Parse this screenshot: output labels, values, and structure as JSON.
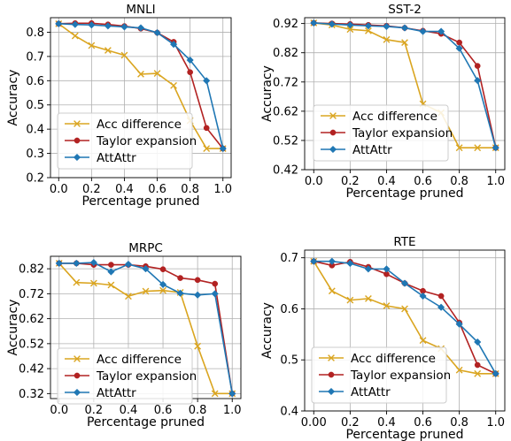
{
  "colors": {
    "acc_difference": "#DAA520",
    "taylor": "#B22222",
    "attattr": "#1F77B4"
  },
  "chart_data": [
    {
      "type": "line",
      "title": "MNLI",
      "xlabel": "Percentage pruned",
      "ylabel": "Accuracy",
      "xlim": [
        -0.05,
        1.05
      ],
      "ylim": [
        0.2,
        0.86
      ],
      "xticks": [
        "0.0",
        "0.2",
        "0.4",
        "0.6",
        "0.8",
        "1.0"
      ],
      "yticks": [
        "0.2",
        "0.3",
        "0.4",
        "0.5",
        "0.6",
        "0.7",
        "0.8"
      ],
      "grid": true,
      "legend": "lower-left",
      "x": [
        0.0,
        0.1,
        0.2,
        0.3,
        0.4,
        0.5,
        0.6,
        0.7,
        0.8,
        0.9,
        1.0
      ],
      "series": [
        {
          "name": "Acc difference",
          "marker": "x",
          "values": [
            0.835,
            0.785,
            0.745,
            0.725,
            0.705,
            0.627,
            0.63,
            0.58,
            0.435,
            0.32,
            0.32
          ]
        },
        {
          "name": "Taylor expansion",
          "marker": "o",
          "values": [
            0.835,
            0.837,
            0.837,
            0.832,
            0.825,
            0.815,
            0.798,
            0.76,
            0.635,
            0.405,
            0.32
          ]
        },
        {
          "name": "AttAttr",
          "marker": "D",
          "values": [
            0.835,
            0.832,
            0.83,
            0.826,
            0.822,
            0.818,
            0.798,
            0.75,
            0.685,
            0.6,
            0.32
          ]
        }
      ]
    },
    {
      "type": "line",
      "title": "SST-2",
      "xlabel": "Percentage pruned",
      "ylabel": "Accuracy",
      "xlim": [
        -0.05,
        1.05
      ],
      "ylim": [
        0.42,
        0.94
      ],
      "xticks": [
        "0.0",
        "0.2",
        "0.4",
        "0.6",
        "0.8",
        "1.0"
      ],
      "yticks": [
        "0.42",
        "0.52",
        "0.62",
        "0.72",
        "0.82",
        "0.92"
      ],
      "grid": true,
      "legend": "lower-left",
      "x": [
        0.0,
        0.1,
        0.2,
        0.3,
        0.4,
        0.5,
        0.6,
        0.7,
        0.8,
        0.9,
        1.0
      ],
      "series": [
        {
          "name": "Acc difference",
          "marker": "x",
          "values": [
            0.922,
            0.915,
            0.9,
            0.895,
            0.865,
            0.855,
            0.645,
            0.615,
            0.495,
            0.495,
            0.495
          ]
        },
        {
          "name": "Taylor expansion",
          "marker": "o",
          "values": [
            0.922,
            0.92,
            0.918,
            0.915,
            0.912,
            0.905,
            0.895,
            0.885,
            0.855,
            0.775,
            0.495
          ]
        },
        {
          "name": "AttAttr",
          "marker": "D",
          "values": [
            0.922,
            0.918,
            0.915,
            0.912,
            0.91,
            0.905,
            0.893,
            0.893,
            0.835,
            0.725,
            0.495
          ]
        }
      ]
    },
    {
      "type": "line",
      "title": "MRPC",
      "xlabel": "Percentage pruned",
      "ylabel": "Accuracy",
      "xlim": [
        -0.05,
        1.05
      ],
      "ylim": [
        0.3,
        0.87
      ],
      "xticks": [
        "0.0",
        "0.2",
        "0.4",
        "0.6",
        "0.8",
        "1.0"
      ],
      "yticks": [
        "0.32",
        "0.42",
        "0.52",
        "0.62",
        "0.72",
        "0.82"
      ],
      "grid": true,
      "legend": "lower-left",
      "x": [
        0.0,
        0.1,
        0.2,
        0.3,
        0.4,
        0.5,
        0.6,
        0.7,
        0.8,
        0.9,
        1.0
      ],
      "series": [
        {
          "name": "Acc difference",
          "marker": "x",
          "values": [
            0.842,
            0.765,
            0.762,
            0.755,
            0.71,
            0.73,
            0.733,
            0.725,
            0.51,
            0.32,
            0.32
          ]
        },
        {
          "name": "Taylor expansion",
          "marker": "o",
          "values": [
            0.842,
            0.842,
            0.836,
            0.836,
            0.836,
            0.83,
            0.818,
            0.783,
            0.775,
            0.76,
            0.32
          ]
        },
        {
          "name": "AttAttr",
          "marker": "D",
          "values": [
            0.842,
            0.842,
            0.845,
            0.808,
            0.838,
            0.82,
            0.757,
            0.722,
            0.715,
            0.72,
            0.32
          ]
        }
      ]
    },
    {
      "type": "line",
      "title": "RTE",
      "xlabel": "Percentage pruned",
      "ylabel": "Accuracy",
      "xlim": [
        -0.05,
        1.05
      ],
      "ylim": [
        0.4,
        0.715
      ],
      "xticks": [
        "0.00",
        "0.2",
        "0.4",
        "0.6",
        "0.8",
        "1.0"
      ],
      "yticks": [
        "0.4",
        "0.5",
        "0.6",
        "0.7"
      ],
      "grid": true,
      "legend": "lower-left",
      "x": [
        0.0,
        0.1,
        0.2,
        0.3,
        0.4,
        0.5,
        0.6,
        0.7,
        0.8,
        0.9,
        1.0
      ],
      "series": [
        {
          "name": "Acc difference",
          "marker": "x",
          "values": [
            0.693,
            0.635,
            0.617,
            0.62,
            0.606,
            0.6,
            0.538,
            0.522,
            0.48,
            0.473,
            0.473
          ]
        },
        {
          "name": "Taylor expansion",
          "marker": "o",
          "values": [
            0.693,
            0.685,
            0.692,
            0.682,
            0.668,
            0.65,
            0.635,
            0.625,
            0.573,
            0.49,
            0.473
          ]
        },
        {
          "name": "AttAttr",
          "marker": "D",
          "values": [
            0.693,
            0.693,
            0.689,
            0.678,
            0.678,
            0.65,
            0.625,
            0.603,
            0.57,
            0.535,
            0.473
          ]
        }
      ]
    }
  ]
}
